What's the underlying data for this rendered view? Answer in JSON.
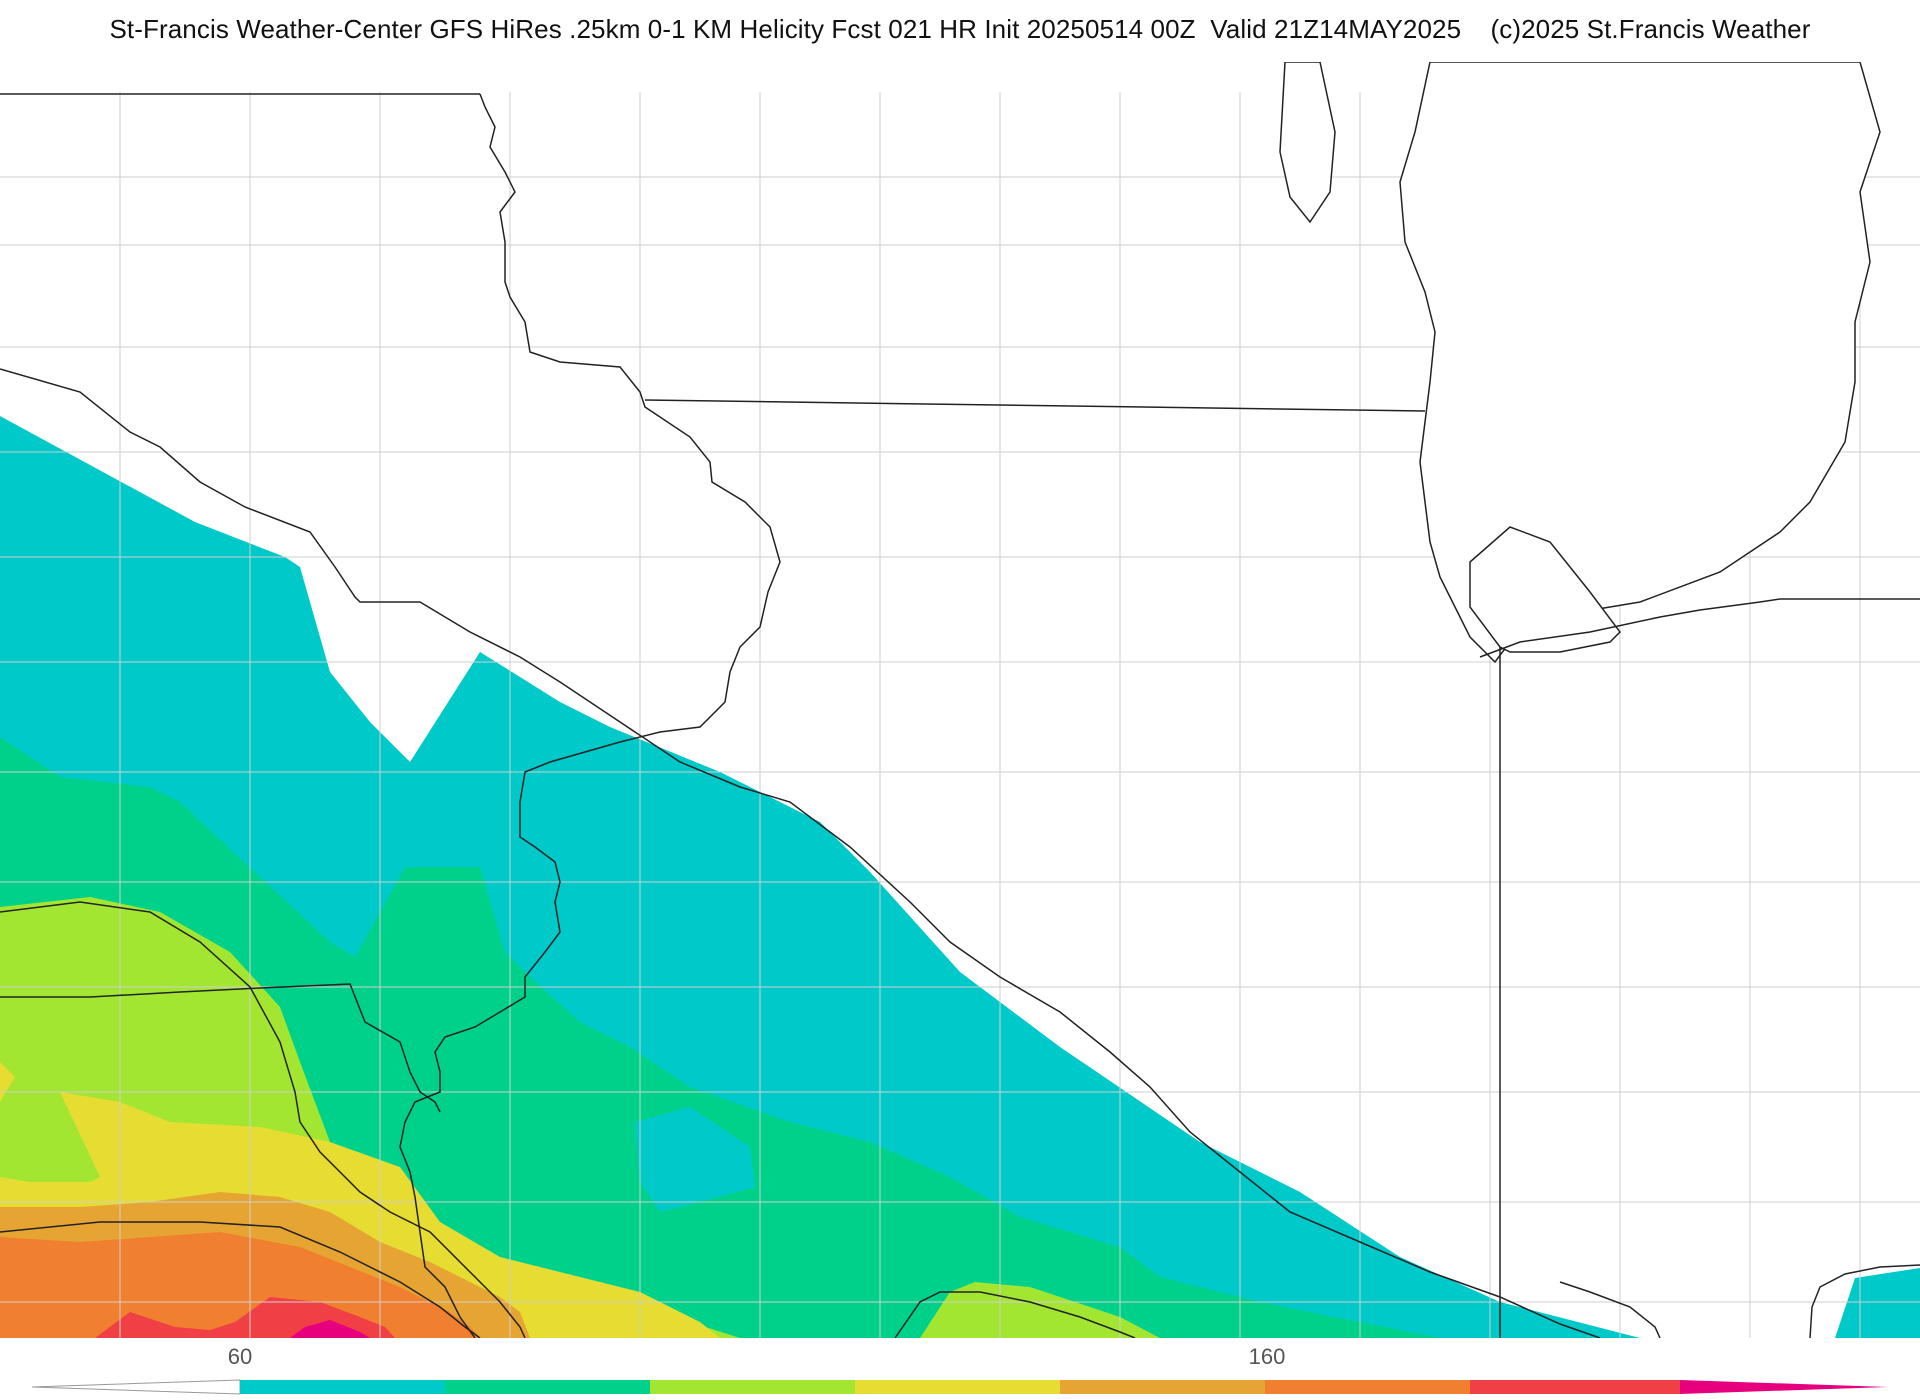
{
  "header": {
    "title": "St-Francis Weather-Center GFS HiRes .25km 0-1 KM Helicity Fcst 021 HR Init 20250514 00Z  Valid 21Z14MAY2025    (c)2025 St.Francis Weather"
  },
  "legend": {
    "tick_60": "60",
    "tick_160": "160",
    "colors": [
      "#00c9c9",
      "#00d18a",
      "#a3e632",
      "#e6dc32",
      "#e6a532",
      "#f08030",
      "#f04045",
      "#e6007e"
    ]
  },
  "map": {
    "fill_colors": {
      "cyan": "#00c9c9",
      "green": "#00d18a",
      "lime": "#a3e632",
      "yellow": "#e6dc32",
      "gold": "#e6a532",
      "orange": "#f08030",
      "red": "#f04045",
      "magenta": "#e6007e"
    }
  }
}
